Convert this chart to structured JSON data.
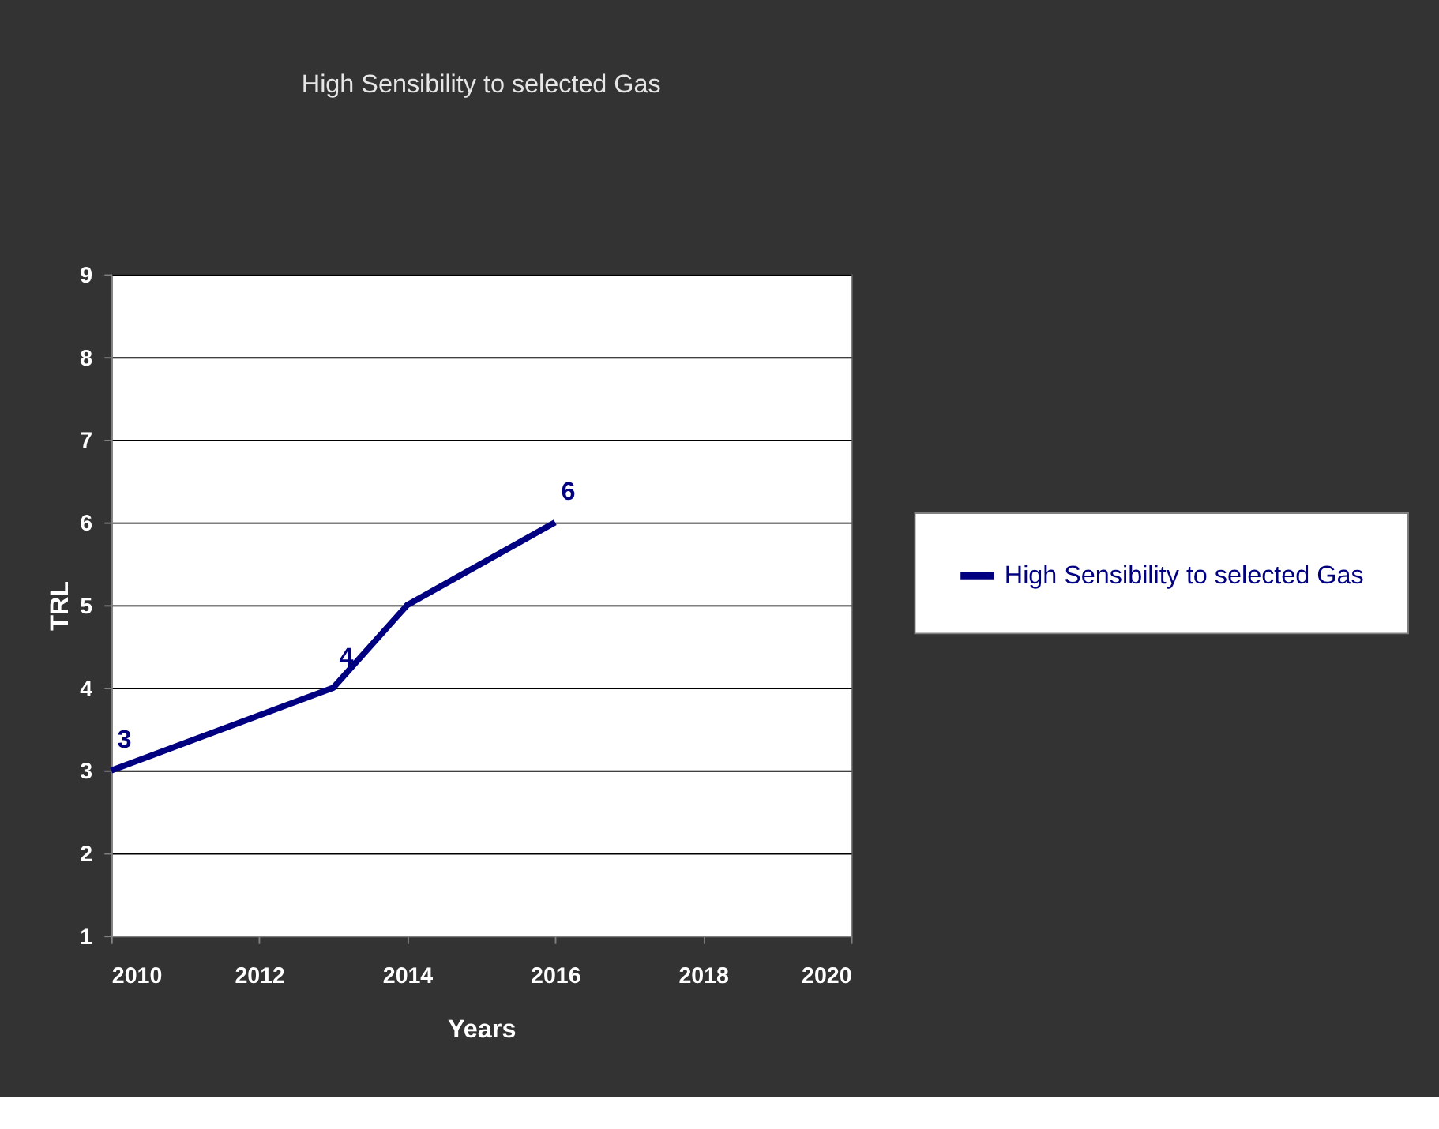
{
  "chart_data": {
    "type": "line",
    "title": "High Sensibility to selected Gas",
    "xlabel": "Years",
    "ylabel": "TRL",
    "x": [
      2010,
      2013,
      2014,
      2016
    ],
    "series": [
      {
        "name": "High Sensibility to selected Gas",
        "color": "#000080",
        "values": [
          3,
          4,
          5,
          6
        ],
        "value_labels": [
          "3",
          "4",
          null,
          "6"
        ]
      }
    ],
    "xlim": [
      2010,
      2020
    ],
    "xticks": [
      2010,
      2012,
      2014,
      2016,
      2018,
      2020
    ],
    "ylim": [
      1,
      9
    ],
    "yticks": [
      1,
      2,
      3,
      4,
      5,
      6,
      7,
      8,
      9
    ],
    "grid": "y",
    "legend": "right",
    "marker": "none",
    "line_style": "solid"
  }
}
